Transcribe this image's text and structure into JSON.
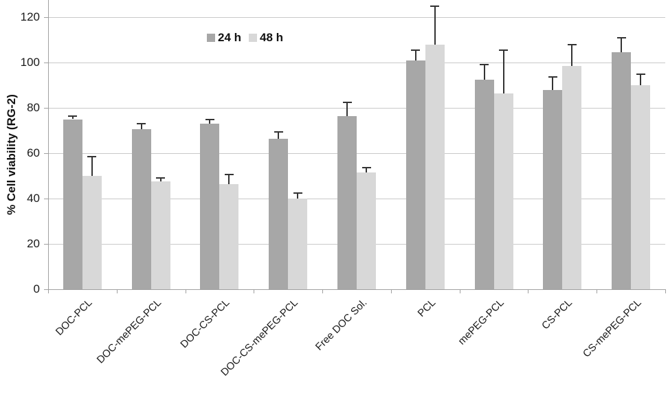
{
  "figure": {
    "background": "#ffffff"
  },
  "chart_data": {
    "type": "bar",
    "title": "",
    "xlabel": "",
    "ylabel": "% Cell viability (RG-2)",
    "ylim": [
      0,
      127.5
    ],
    "yticks": [
      0,
      20,
      40,
      60,
      80,
      100,
      120
    ],
    "grid": true,
    "legend_position": "top-center",
    "error_bars": "upper",
    "categories": [
      "DOC-PCL",
      "DOC-mePEG-PCL",
      "DOC-CS-PCL",
      "DOC-CS-mePEG-PCL",
      "Free DOC Sol.",
      "PCL",
      "mePEG-PCL",
      "CS-PCL",
      "CS-mePEG-PCL"
    ],
    "series": [
      {
        "name": "24 h",
        "color": "#a7a7a7",
        "values": [
          75,
          70.5,
          73,
          66.5,
          76.5,
          101,
          92.5,
          88,
          104.5
        ],
        "errors_up": [
          1.5,
          2.5,
          2,
          3,
          6,
          4.5,
          6.5,
          5.5,
          6.5
        ]
      },
      {
        "name": "48 h",
        "color": "#d8d8d8",
        "values": [
          50,
          47.5,
          46.5,
          40,
          51.5,
          108,
          86.5,
          98.5,
          90
        ],
        "errors_up": [
          8.5,
          1.5,
          4,
          2.5,
          2,
          17,
          19,
          9.5,
          5
        ]
      }
    ],
    "colors": {
      "gridline": "#c9c9c9",
      "axis": "#a0a0a0",
      "error_bar": "#333333",
      "text": "#1a1a1a"
    }
  }
}
